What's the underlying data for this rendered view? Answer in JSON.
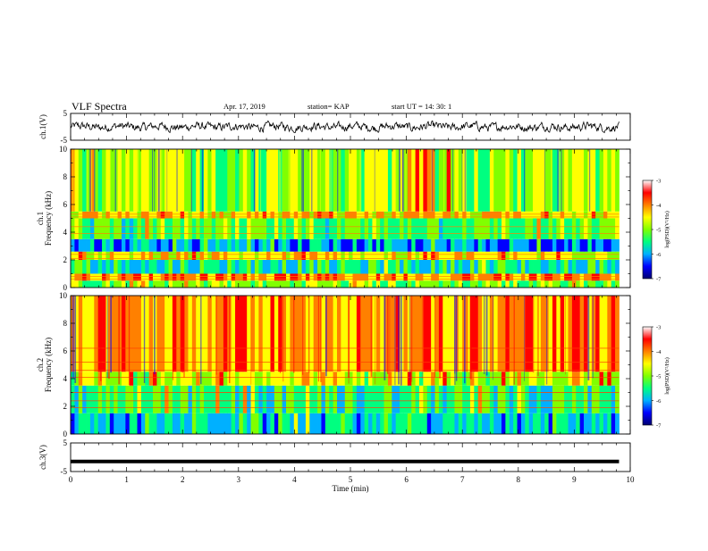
{
  "header": {
    "title": "VLF Spectra",
    "date": "Apr. 17, 2019",
    "station": "station= KAP",
    "start": "start  UT  =   14: 30: 1"
  },
  "colors": {
    "colormap": [
      "#000070",
      "#0000ff",
      "#00b0ff",
      "#00ff80",
      "#80ff00",
      "#ffff00",
      "#ff8000",
      "#ff0000",
      "#ffffff"
    ],
    "trace": "#000000"
  },
  "chart_data": [
    {
      "type": "line",
      "ylabel": "ch.1(V)",
      "ylim": [
        -5,
        5
      ],
      "yticks": [
        "5",
        "-5"
      ],
      "xlim": [
        0,
        10
      ],
      "description_of_series": "noisy waveform oscillating around 0 V with amplitude about 1.5 V"
    },
    {
      "type": "heatmap",
      "ylabel_top": "ch.1",
      "ylabel": "Frequency (kHz)",
      "ylim": [
        0,
        10
      ],
      "yticks": [
        "0",
        "2",
        "4",
        "6",
        "8",
        "10"
      ],
      "xlim": [
        0,
        10
      ],
      "colorbar": {
        "label": "log(PSD)(V²/Hz)",
        "ticks": [
          "-3",
          "-4",
          "-5",
          "-6",
          "-7"
        ],
        "range": [
          -7,
          -3
        ]
      },
      "bands_log_psd": [
        {
          "f_low": 0.0,
          "f_high": 0.5,
          "value": -4.8
        },
        {
          "f_low": 0.5,
          "f_high": 1.0,
          "value": -3.6
        },
        {
          "f_low": 1.0,
          "f_high": 2.0,
          "value": -5.4
        },
        {
          "f_low": 2.0,
          "f_high": 2.6,
          "value": -4.2
        },
        {
          "f_low": 2.6,
          "f_high": 3.5,
          "value": -6.0
        },
        {
          "f_low": 3.5,
          "f_high": 5.0,
          "value": -5.0
        },
        {
          "f_low": 5.0,
          "f_high": 5.5,
          "value": -4.0
        },
        {
          "f_low": 5.5,
          "f_high": 10.0,
          "value": -4.6
        }
      ]
    },
    {
      "type": "heatmap",
      "ylabel_top": "ch.2",
      "ylabel": "Frequency (kHz)",
      "ylim": [
        0,
        10
      ],
      "yticks": [
        "0",
        "2",
        "4",
        "6",
        "8",
        "10"
      ],
      "xlim": [
        0,
        10
      ],
      "colorbar": {
        "label": "log(PSD)(V²/Hz)",
        "ticks": [
          "-3",
          "-4",
          "-5",
          "-6",
          "-7"
        ],
        "range": [
          -7,
          -3
        ]
      },
      "bands_log_psd": [
        {
          "f_low": 0.0,
          "f_high": 1.5,
          "value": -5.6
        },
        {
          "f_low": 1.5,
          "f_high": 3.5,
          "value": -5.2
        },
        {
          "f_low": 3.5,
          "f_high": 4.5,
          "value": -4.4
        },
        {
          "f_low": 4.5,
          "f_high": 10.0,
          "value": -3.7
        }
      ]
    },
    {
      "type": "line",
      "ylabel": "ch.3(V)",
      "ylim": [
        -5,
        5
      ],
      "yticks": [
        "5",
        "-5"
      ],
      "xlim": [
        0,
        10
      ],
      "xlabel": "Time (min)",
      "xticks": [
        "0",
        "1",
        "2",
        "3",
        "4",
        "5",
        "6",
        "7",
        "8",
        "9",
        "10"
      ],
      "constant_value": -1.5
    }
  ]
}
